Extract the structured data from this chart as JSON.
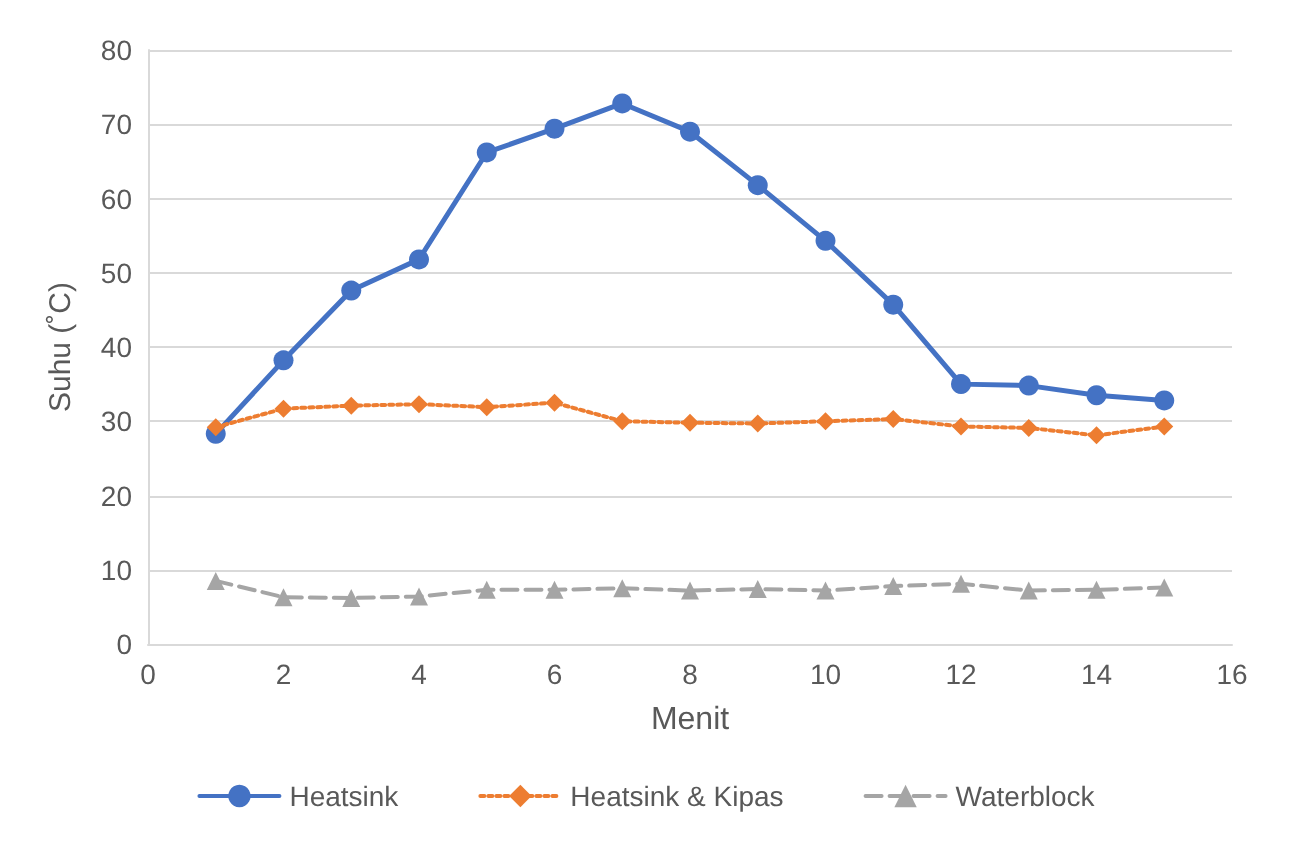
{
  "chart_data": {
    "type": "line",
    "xlabel": "Menit",
    "ylabel": "Suhu (˚C)",
    "x": [
      1,
      2,
      3,
      4,
      5,
      6,
      7,
      8,
      9,
      10,
      11,
      12,
      13,
      14,
      15
    ],
    "series": [
      {
        "name": "Heatsink",
        "color": "#4472c4",
        "marker": "circle",
        "line_style": "solid",
        "values": [
          28.3,
          38.2,
          47.6,
          51.8,
          66.2,
          69.4,
          72.8,
          69,
          61.8,
          54.3,
          45.7,
          35,
          34.8,
          33.5,
          32.8
        ]
      },
      {
        "name": "Heatsink & Kipas",
        "color": "#ed7d31",
        "marker": "diamond",
        "line_style": "dotted",
        "values": [
          29.2,
          31.7,
          32.1,
          32.3,
          31.9,
          32.5,
          30,
          29.8,
          29.7,
          30,
          30.3,
          29.3,
          29.1,
          28.1,
          29.3
        ]
      },
      {
        "name": "Waterblock",
        "color": "#a5a5a5",
        "marker": "triangle",
        "line_style": "dashed",
        "values": [
          8.5,
          6.3,
          6.2,
          6.4,
          7.3,
          7.3,
          7.5,
          7.2,
          7.4,
          7.2,
          7.8,
          8.1,
          7.2,
          7.3,
          7.6
        ]
      }
    ],
    "xlim": [
      0,
      16
    ],
    "xticks": [
      0,
      2,
      4,
      6,
      8,
      10,
      12,
      14,
      16
    ],
    "ylim": [
      0,
      80
    ],
    "yticks": [
      0,
      10,
      20,
      30,
      40,
      50,
      60,
      70,
      80
    ],
    "grid": "y",
    "legend": "bottom"
  }
}
